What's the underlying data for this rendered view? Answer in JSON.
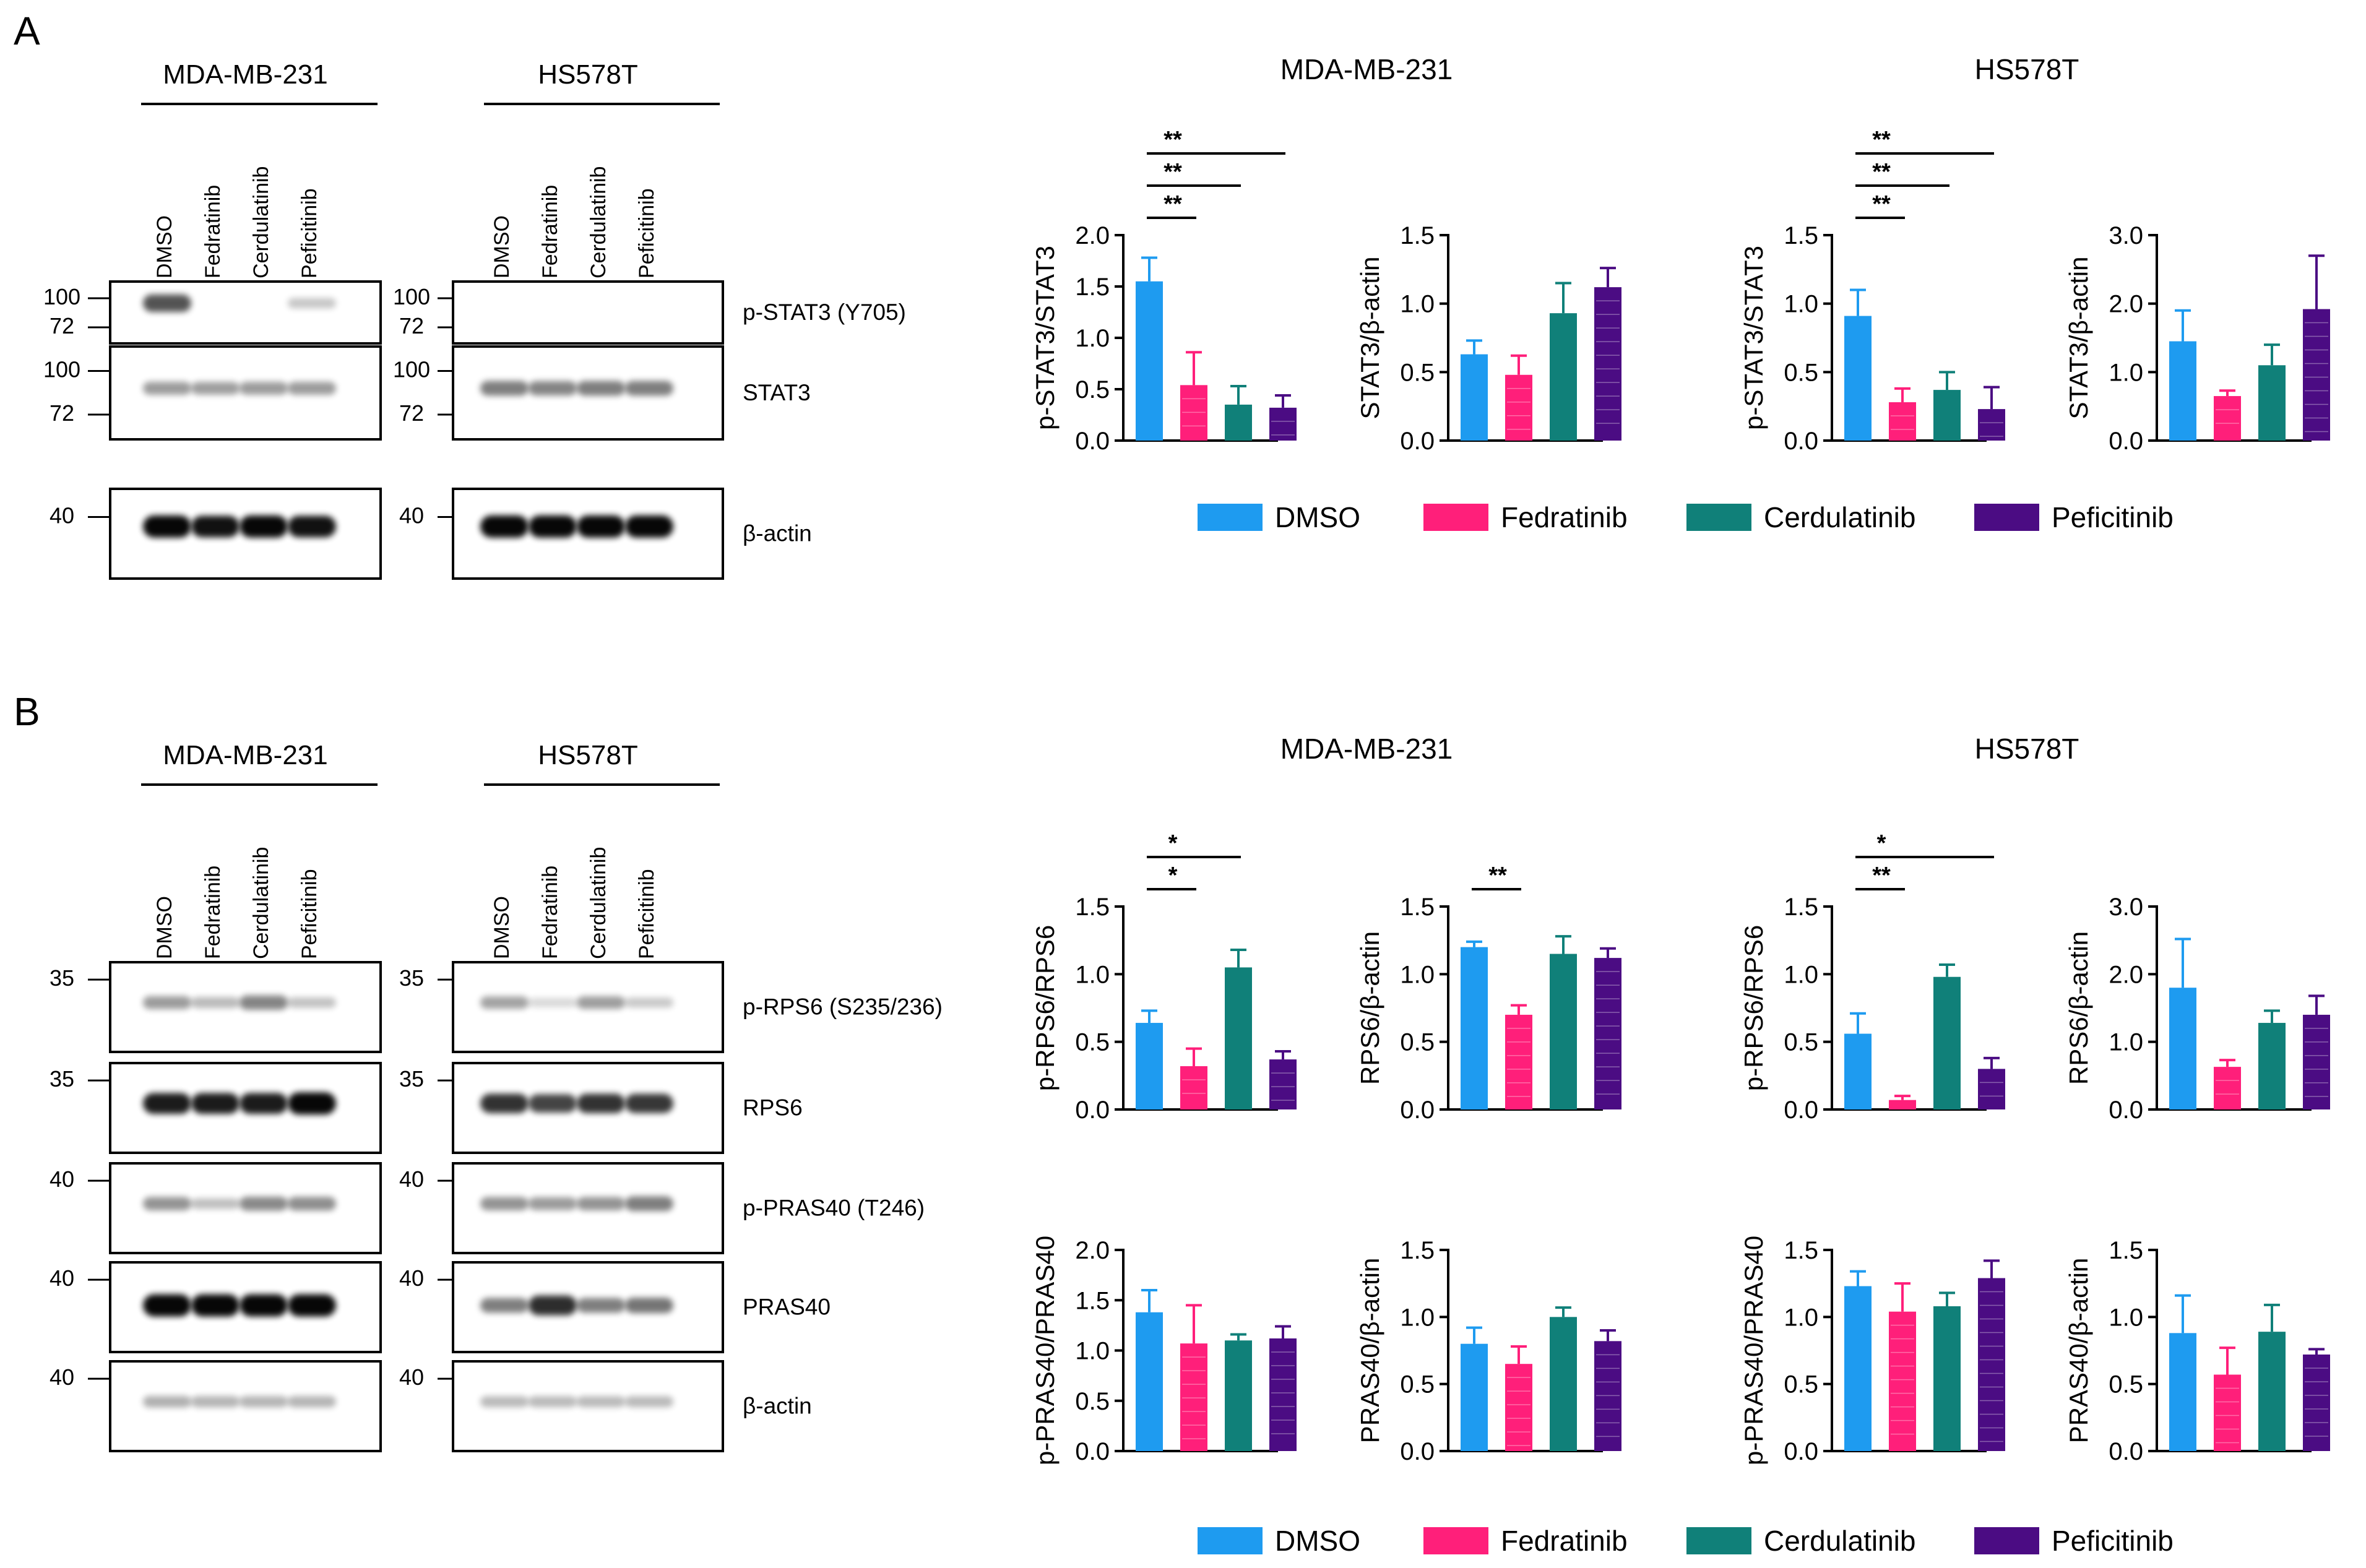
{
  "panels": [
    {
      "label": "A",
      "blot": {
        "cells": [
          "MDA-MB-231",
          "HS578T"
        ],
        "lanes": [
          "DMSO",
          "Fedratinib",
          "Cerdulatinib",
          "Peficitinib"
        ],
        "rows": [
          {
            "name": "p-STAT3 (Y705)",
            "left_markers": [
              "100",
              "72"
            ],
            "right_markers": [
              "100",
              "72"
            ]
          },
          {
            "name": "STAT3",
            "left_markers": [
              "100",
              "72"
            ],
            "right_markers": [
              "100",
              "72"
            ]
          },
          {
            "name": "β-actin",
            "left_markers": [
              "40"
            ],
            "right_markers": [
              "40"
            ]
          }
        ]
      },
      "chart_titles": [
        "MDA-MB-231",
        "HS578T"
      ]
    },
    {
      "label": "B",
      "blot": {
        "cells": [
          "MDA-MB-231",
          "HS578T"
        ],
        "lanes": [
          "DMSO",
          "Fedratinib",
          "Cerdulatinib",
          "Peficitinib"
        ],
        "rows": [
          {
            "name": "p-RPS6 (S235/236)",
            "left_markers": [
              "35"
            ],
            "right_markers": [
              "35"
            ]
          },
          {
            "name": "RPS6",
            "left_markers": [
              "35"
            ],
            "right_markers": [
              "35"
            ]
          },
          {
            "name": "p-PRAS40 (T246)",
            "left_markers": [
              "40"
            ],
            "right_markers": [
              "40"
            ]
          },
          {
            "name": "PRAS40",
            "left_markers": [
              "40"
            ],
            "right_markers": [
              "40"
            ]
          },
          {
            "name": "β-actin",
            "left_markers": [
              "40"
            ],
            "right_markers": [
              "40"
            ]
          }
        ]
      },
      "chart_titles": [
        "MDA-MB-231",
        "HS578T"
      ]
    }
  ],
  "legend": {
    "items": [
      "DMSO",
      "Fedratinib",
      "Cerdulatinib",
      "Peficitinib"
    ],
    "colors": [
      "#1E9BF0",
      "#FF1F7A",
      "#108079",
      "#4B0C83"
    ]
  },
  "chart_data": [
    {
      "type": "bar",
      "panel": "A",
      "cell_line": "MDA-MB-231",
      "ylabel": "p-STAT3/STAT3",
      "ylim": [
        0,
        2.0
      ],
      "yticks": [
        "0.0",
        "0.5",
        "1.0",
        "1.5",
        "2.0"
      ],
      "categories": [
        "DMSO",
        "Fedratinib",
        "Cerdulatinib",
        "Peficitinib"
      ],
      "values": [
        1.55,
        0.54,
        0.35,
        0.32
      ],
      "errors": [
        0.23,
        0.32,
        0.18,
        0.12
      ],
      "significance": [
        {
          "from": 0,
          "to": 1,
          "label": "**"
        },
        {
          "from": 0,
          "to": 2,
          "label": "**"
        },
        {
          "from": 0,
          "to": 3,
          "label": "**"
        }
      ]
    },
    {
      "type": "bar",
      "panel": "A",
      "cell_line": "MDA-MB-231",
      "ylabel": "STAT3/β-actin",
      "ylim": [
        0,
        1.5
      ],
      "yticks": [
        "0.0",
        "0.5",
        "1.0",
        "1.5"
      ],
      "categories": [
        "DMSO",
        "Fedratinib",
        "Cerdulatinib",
        "Peficitinib"
      ],
      "values": [
        0.63,
        0.48,
        0.93,
        1.12
      ],
      "errors": [
        0.1,
        0.14,
        0.22,
        0.14
      ],
      "significance": []
    },
    {
      "type": "bar",
      "panel": "A",
      "cell_line": "HS578T",
      "ylabel": "p-STAT3/STAT3",
      "ylim": [
        0,
        1.5
      ],
      "yticks": [
        "0.0",
        "0.5",
        "1.0",
        "1.5"
      ],
      "categories": [
        "DMSO",
        "Fedratinib",
        "Cerdulatinib",
        "Peficitinib"
      ],
      "values": [
        0.91,
        0.28,
        0.37,
        0.23
      ],
      "errors": [
        0.19,
        0.1,
        0.13,
        0.16
      ],
      "significance": [
        {
          "from": 0,
          "to": 1,
          "label": "**"
        },
        {
          "from": 0,
          "to": 2,
          "label": "**"
        },
        {
          "from": 0,
          "to": 3,
          "label": "**"
        }
      ]
    },
    {
      "type": "bar",
      "panel": "A",
      "cell_line": "HS578T",
      "ylabel": "STAT3/β-actin",
      "ylim": [
        0,
        3.0
      ],
      "yticks": [
        "0.0",
        "1.0",
        "2.0",
        "3.0"
      ],
      "categories": [
        "DMSO",
        "Fedratinib",
        "Cerdulatinib",
        "Peficitinib"
      ],
      "values": [
        1.45,
        0.65,
        1.1,
        1.92
      ],
      "errors": [
        0.45,
        0.08,
        0.3,
        0.78
      ],
      "significance": []
    },
    {
      "type": "bar",
      "panel": "B",
      "cell_line": "MDA-MB-231",
      "ylabel": "p-RPS6/RPS6",
      "ylim": [
        0,
        1.5
      ],
      "yticks": [
        "0.0",
        "0.5",
        "1.0",
        "1.5"
      ],
      "categories": [
        "DMSO",
        "Fedratinib",
        "Cerdulatinib",
        "Peficitinib"
      ],
      "values": [
        0.64,
        0.32,
        1.05,
        0.37
      ],
      "errors": [
        0.09,
        0.13,
        0.13,
        0.06
      ],
      "significance": [
        {
          "from": 0,
          "to": 1,
          "label": "*"
        },
        {
          "from": 0,
          "to": 2,
          "label": "*"
        }
      ]
    },
    {
      "type": "bar",
      "panel": "B",
      "cell_line": "MDA-MB-231",
      "ylabel": "RPS6/β-actin",
      "ylim": [
        0,
        1.5
      ],
      "yticks": [
        "0.0",
        "0.5",
        "1.0",
        "1.5"
      ],
      "categories": [
        "DMSO",
        "Fedratinib",
        "Cerdulatinib",
        "Peficitinib"
      ],
      "values": [
        1.2,
        0.7,
        1.15,
        1.12
      ],
      "errors": [
        0.04,
        0.07,
        0.13,
        0.07
      ],
      "significance": [
        {
          "from": 0,
          "to": 1,
          "label": "**"
        }
      ]
    },
    {
      "type": "bar",
      "panel": "B",
      "cell_line": "HS578T",
      "ylabel": "p-RPS6/RPS6",
      "ylim": [
        0,
        1.5
      ],
      "yticks": [
        "0.0",
        "0.5",
        "1.0",
        "1.5"
      ],
      "categories": [
        "DMSO",
        "Fedratinib",
        "Cerdulatinib",
        "Peficitinib"
      ],
      "values": [
        0.56,
        0.07,
        0.98,
        0.3
      ],
      "errors": [
        0.15,
        0.03,
        0.09,
        0.08
      ],
      "significance": [
        {
          "from": 0,
          "to": 1,
          "label": "**"
        },
        {
          "from": 0,
          "to": 3,
          "label": "*"
        }
      ]
    },
    {
      "type": "bar",
      "panel": "B",
      "cell_line": "HS578T",
      "ylabel": "RPS6/β-actin",
      "ylim": [
        0,
        3.0
      ],
      "yticks": [
        "0.0",
        "1.0",
        "2.0",
        "3.0"
      ],
      "categories": [
        "DMSO",
        "Fedratinib",
        "Cerdulatinib",
        "Peficitinib"
      ],
      "values": [
        1.8,
        0.63,
        1.28,
        1.4
      ],
      "errors": [
        0.72,
        0.1,
        0.18,
        0.28
      ],
      "significance": []
    },
    {
      "type": "bar",
      "panel": "B",
      "cell_line": "MDA-MB-231",
      "ylabel": "p-PRAS40/PRAS40",
      "ylim": [
        0,
        2.0
      ],
      "yticks": [
        "0.0",
        "0.5",
        "1.0",
        "1.5",
        "2.0"
      ],
      "categories": [
        "DMSO",
        "Fedratinib",
        "Cerdulatinib",
        "Peficitinib"
      ],
      "values": [
        1.38,
        1.07,
        1.1,
        1.12
      ],
      "errors": [
        0.22,
        0.38,
        0.06,
        0.12
      ],
      "significance": []
    },
    {
      "type": "bar",
      "panel": "B",
      "cell_line": "MDA-MB-231",
      "ylabel": "PRAS40/β-actin",
      "ylim": [
        0,
        1.5
      ],
      "yticks": [
        "0.0",
        "0.5",
        "1.0",
        "1.5"
      ],
      "categories": [
        "DMSO",
        "Fedratinib",
        "Cerdulatinib",
        "Peficitinib"
      ],
      "values": [
        0.8,
        0.65,
        1.0,
        0.82
      ],
      "errors": [
        0.12,
        0.13,
        0.07,
        0.08
      ],
      "significance": []
    },
    {
      "type": "bar",
      "panel": "B",
      "cell_line": "HS578T",
      "ylabel": "p-PRAS40/PRAS40",
      "ylim": [
        0,
        1.5
      ],
      "yticks": [
        "0.0",
        "0.5",
        "1.0",
        "1.5"
      ],
      "categories": [
        "DMSO",
        "Fedratinib",
        "Cerdulatinib",
        "Peficitinib"
      ],
      "values": [
        1.23,
        1.04,
        1.08,
        1.29
      ],
      "errors": [
        0.11,
        0.21,
        0.1,
        0.13
      ],
      "significance": []
    },
    {
      "type": "bar",
      "panel": "B",
      "cell_line": "HS578T",
      "ylabel": "PRAS40/β-actin",
      "ylim": [
        0,
        1.5
      ],
      "yticks": [
        "0.0",
        "0.5",
        "1.0",
        "1.5"
      ],
      "categories": [
        "DMSO",
        "Fedratinib",
        "Cerdulatinib",
        "Peficitinib"
      ],
      "values": [
        0.88,
        0.57,
        0.89,
        0.72
      ],
      "errors": [
        0.28,
        0.2,
        0.2,
        0.04
      ],
      "significance": []
    }
  ]
}
